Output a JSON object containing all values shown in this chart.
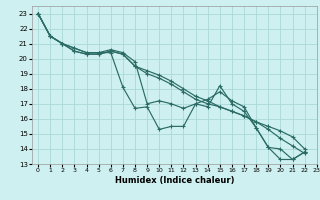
{
  "xlabel": "Humidex (Indice chaleur)",
  "background_color": "#cff0f0",
  "grid_color": "#aad8d8",
  "line_color": "#2a6b65",
  "xlim": [
    -0.5,
    23
  ],
  "ylim": [
    13,
    23.5
  ],
  "xticks": [
    0,
    1,
    2,
    3,
    4,
    5,
    6,
    7,
    8,
    9,
    10,
    11,
    12,
    13,
    14,
    15,
    16,
    17,
    18,
    19,
    20,
    21,
    22,
    23
  ],
  "yticks": [
    13,
    14,
    15,
    16,
    17,
    18,
    19,
    20,
    21,
    22,
    23
  ],
  "series": [
    [
      23,
      21.5,
      21.0,
      20.7,
      20.4,
      20.4,
      20.4,
      18.1,
      16.7,
      16.8,
      15.3,
      15.5,
      15.5,
      17.0,
      16.8,
      18.2,
      17.0,
      16.5,
      15.4,
      14.1,
      13.3,
      13.3,
      13.8
    ],
    [
      23,
      21.5,
      21.0,
      20.7,
      20.4,
      20.4,
      20.6,
      20.4,
      19.8,
      17.0,
      17.2,
      17.0,
      16.7,
      17.0,
      17.3,
      17.8,
      17.2,
      16.8,
      15.4,
      14.1,
      14.0,
      13.3,
      13.8
    ],
    [
      23,
      21.5,
      21.0,
      20.5,
      20.3,
      20.3,
      20.5,
      20.3,
      19.5,
      19.0,
      18.7,
      18.3,
      17.8,
      17.3,
      17.0,
      16.8,
      16.5,
      16.2,
      15.8,
      15.5,
      15.2,
      14.8,
      14.0
    ],
    [
      23,
      21.5,
      21.0,
      20.5,
      20.3,
      20.3,
      20.5,
      20.3,
      19.5,
      19.2,
      18.9,
      18.5,
      18.0,
      17.5,
      17.2,
      16.8,
      16.5,
      16.2,
      15.8,
      15.3,
      14.7,
      14.2,
      13.7
    ]
  ]
}
